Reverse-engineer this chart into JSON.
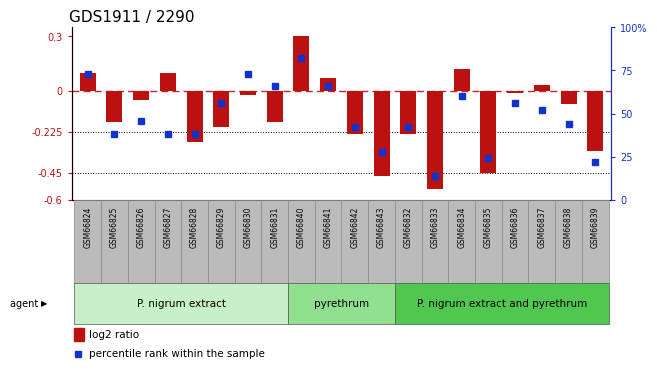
{
  "title": "GDS1911 / 2290",
  "samples": [
    "GSM66824",
    "GSM66825",
    "GSM66826",
    "GSM66827",
    "GSM66828",
    "GSM66829",
    "GSM66830",
    "GSM66831",
    "GSM66840",
    "GSM66841",
    "GSM66842",
    "GSM66843",
    "GSM66832",
    "GSM66833",
    "GSM66834",
    "GSM66835",
    "GSM66836",
    "GSM66837",
    "GSM66838",
    "GSM66839"
  ],
  "log2_ratio": [
    0.1,
    -0.17,
    -0.05,
    0.1,
    -0.28,
    -0.2,
    -0.02,
    -0.17,
    0.3,
    0.07,
    -0.24,
    -0.47,
    -0.24,
    -0.54,
    0.12,
    -0.45,
    -0.01,
    0.03,
    -0.07,
    -0.33
  ],
  "percentile": [
    73,
    38,
    46,
    38,
    38,
    56,
    73,
    66,
    82,
    66,
    42,
    28,
    42,
    14,
    60,
    24,
    56,
    52,
    44,
    22
  ],
  "groups": [
    {
      "label": "P. nigrum extract",
      "start": 0,
      "end": 8,
      "color": "#c8f0c8"
    },
    {
      "label": "pyrethrum",
      "start": 8,
      "end": 12,
      "color": "#90e090"
    },
    {
      "label": "P. nigrum extract and pyrethrum",
      "start": 12,
      "end": 20,
      "color": "#50c850"
    }
  ],
  "bar_color": "#bb1111",
  "dot_color": "#1133cc",
  "zero_line_color": "#cc2222",
  "dotted_line_color": "#000000",
  "ylim_left": [
    -0.6,
    0.35
  ],
  "ylim_right": [
    0,
    100
  ],
  "yticks_left": [
    -0.6,
    -0.45,
    -0.225,
    0.0,
    0.3
  ],
  "ytick_labels_left": [
    "-0.6",
    "-0.45",
    "-0.225",
    "0",
    "0.3"
  ],
  "yticks_right": [
    0,
    25,
    50,
    75,
    100
  ],
  "hlines": [
    -0.225,
    -0.45
  ],
  "bar_width": 0.6,
  "label_area_color": "#bbbbbb",
  "fig_bg": "#ffffff"
}
